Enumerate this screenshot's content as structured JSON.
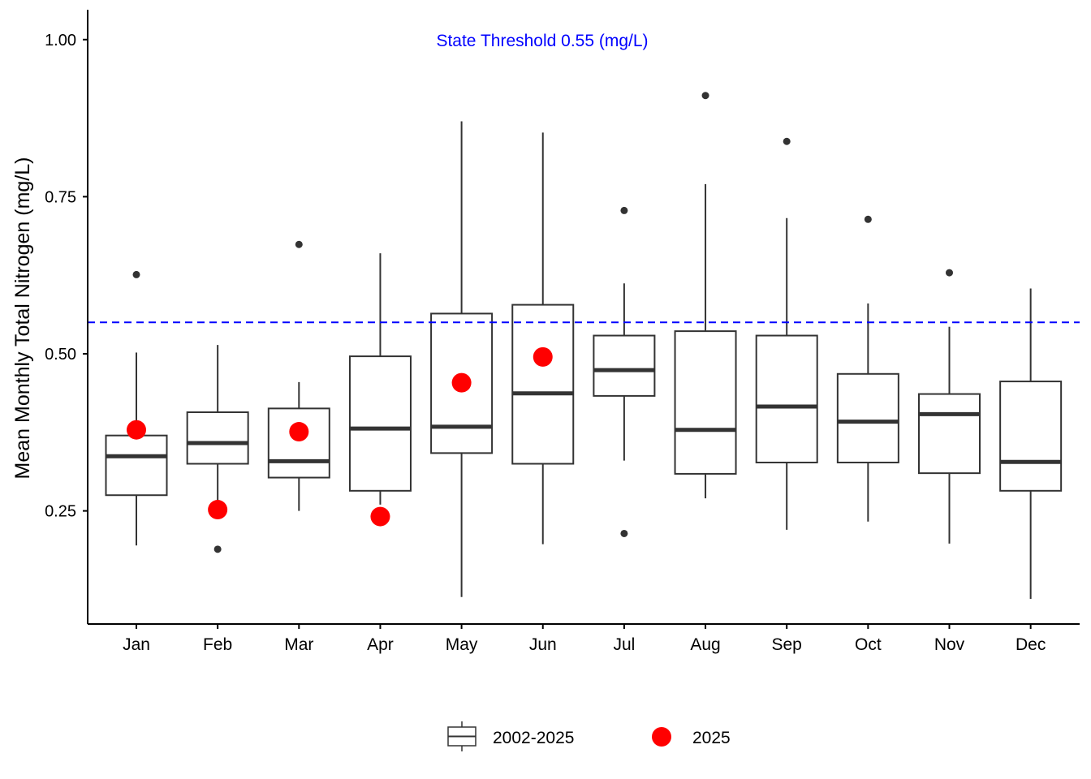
{
  "chart_data": {
    "type": "boxplot",
    "xlabel": "",
    "ylabel": "Mean Monthly Total Nitrogen (mg/L)",
    "ylim": [
      0.07,
      1.05
    ],
    "yticks": [
      0.25,
      0.5,
      0.75,
      1.0
    ],
    "ytick_labels": [
      "0.25",
      "0.50",
      "0.75",
      "1.00"
    ],
    "categories": [
      "Jan",
      "Feb",
      "Mar",
      "Apr",
      "May",
      "Jun",
      "Jul",
      "Aug",
      "Sep",
      "Oct",
      "Nov",
      "Dec"
    ],
    "threshold": {
      "value": 0.55,
      "label": "State Threshold 0.55 (mg/L)",
      "color": "#0000ff"
    },
    "legend": {
      "position": "bottom",
      "box_label": "2002-2025",
      "point_label": "2025"
    },
    "grid": false,
    "box_color": "#333333",
    "point_color": "#ff0000",
    "boxes": [
      {
        "month": "Jan",
        "whisker_low": 0.195,
        "q1": 0.275,
        "median": 0.337,
        "q3": 0.37,
        "whisker_high": 0.502,
        "outliers": [
          0.626
        ]
      },
      {
        "month": "Feb",
        "whisker_low": 0.251,
        "q1": 0.325,
        "median": 0.358,
        "q3": 0.407,
        "whisker_high": 0.514,
        "outliers": [
          0.189
        ]
      },
      {
        "month": "Mar",
        "whisker_low": 0.25,
        "q1": 0.303,
        "median": 0.329,
        "q3": 0.413,
        "whisker_high": 0.455,
        "outliers": [
          0.674
        ]
      },
      {
        "month": "Apr",
        "whisker_low": 0.26,
        "q1": 0.282,
        "median": 0.381,
        "q3": 0.496,
        "whisker_high": 0.66,
        "outliers": []
      },
      {
        "month": "May",
        "whisker_low": 0.113,
        "q1": 0.342,
        "median": 0.384,
        "q3": 0.564,
        "whisker_high": 0.87,
        "outliers": []
      },
      {
        "month": "Jun",
        "whisker_low": 0.197,
        "q1": 0.325,
        "median": 0.437,
        "q3": 0.578,
        "whisker_high": 0.852,
        "outliers": []
      },
      {
        "month": "Jul",
        "whisker_low": 0.33,
        "q1": 0.433,
        "median": 0.474,
        "q3": 0.529,
        "whisker_high": 0.612,
        "outliers": [
          0.728,
          0.214
        ]
      },
      {
        "month": "Aug",
        "whisker_low": 0.27,
        "q1": 0.309,
        "median": 0.379,
        "q3": 0.536,
        "whisker_high": 0.77,
        "outliers": [
          0.911
        ]
      },
      {
        "month": "Sep",
        "whisker_low": 0.22,
        "q1": 0.327,
        "median": 0.416,
        "q3": 0.529,
        "whisker_high": 0.716,
        "outliers": [
          0.838
        ]
      },
      {
        "month": "Oct",
        "whisker_low": 0.233,
        "q1": 0.327,
        "median": 0.392,
        "q3": 0.468,
        "whisker_high": 0.58,
        "outliers": [
          0.714
        ]
      },
      {
        "month": "Nov",
        "whisker_low": 0.198,
        "q1": 0.31,
        "median": 0.404,
        "q3": 0.436,
        "whisker_high": 0.543,
        "outliers": [
          0.629
        ]
      },
      {
        "month": "Dec",
        "whisker_low": 0.11,
        "q1": 0.282,
        "median": 0.328,
        "q3": 0.456,
        "whisker_high": 0.604,
        "outliers": []
      }
    ],
    "points_2025": [
      {
        "month": "Jan",
        "value": 0.379
      },
      {
        "month": "Feb",
        "value": 0.252
      },
      {
        "month": "Mar",
        "value": 0.376
      },
      {
        "month": "Apr",
        "value": 0.241
      },
      {
        "month": "May",
        "value": 0.454
      },
      {
        "month": "Jun",
        "value": 0.495
      }
    ]
  }
}
